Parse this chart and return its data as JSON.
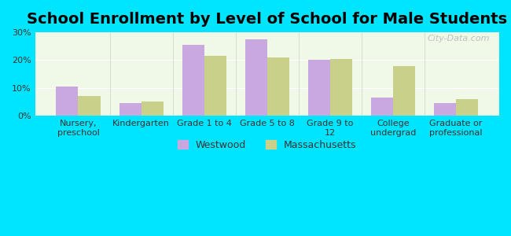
{
  "title": "School Enrollment by Level of School for Male Students",
  "categories": [
    "Nursery,\npreschool",
    "Kindergarten",
    "Grade 1 to 4",
    "Grade 5 to 8",
    "Grade 9 to\n12",
    "College\nundergrad",
    "Graduate or\nprofessional"
  ],
  "westwood": [
    10.5,
    4.5,
    25.5,
    27.5,
    20.0,
    6.5,
    4.5
  ],
  "massachusetts": [
    7.0,
    5.0,
    21.5,
    21.0,
    20.5,
    18.0,
    6.0
  ],
  "westwood_color": "#c9a8e0",
  "massachusetts_color": "#c8d08a",
  "background_outer": "#00e5ff",
  "background_inner": "#f0f8e8",
  "ylim": [
    0,
    30
  ],
  "yticks": [
    0,
    10,
    20,
    30
  ],
  "bar_width": 0.35,
  "title_fontsize": 14,
  "tick_fontsize": 8,
  "legend_fontsize": 9,
  "watermark": "City-Data.com"
}
